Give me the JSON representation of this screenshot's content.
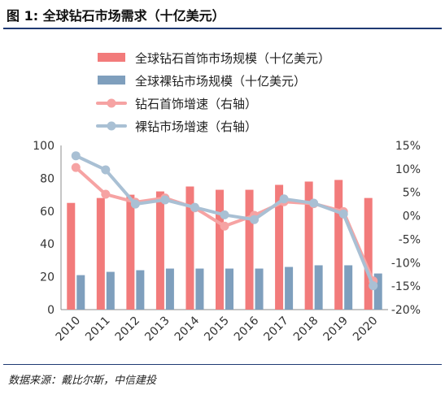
{
  "figure_title": "图 1: 全球钻石市场需求（十亿美元）",
  "source": "数据来源：戴比尔斯，中信建投",
  "chart_data": {
    "type": "bar",
    "categories": [
      "2010",
      "2011",
      "2012",
      "2013",
      "2014",
      "2015",
      "2016",
      "2017",
      "2018",
      "2019",
      "2020"
    ],
    "ylim": [
      0,
      100
    ],
    "yticks": [
      "0",
      "20",
      "40",
      "60",
      "80",
      "100"
    ],
    "y2lim": [
      -20,
      15
    ],
    "y2ticks": [
      "-20%",
      "-15%",
      "-10%",
      "-5%",
      "0%",
      "5%",
      "10%",
      "15%"
    ],
    "y2values": [
      -20,
      -15,
      -10,
      -5,
      0,
      5,
      10,
      15
    ],
    "grid": false,
    "legend_position": "top",
    "series": [
      {
        "name": "全球钻石首饰市场规模（十亿美元）",
        "kind": "bar",
        "axis": "left",
        "color": "#f27b7b",
        "values": [
          65,
          68,
          70,
          72,
          75,
          73,
          73,
          76,
          78,
          79,
          68
        ]
      },
      {
        "name": "全球裸钻市场规模（十亿美元）",
        "kind": "bar",
        "axis": "left",
        "color": "#7f9fbd",
        "values": [
          21,
          23,
          24,
          25,
          25,
          25,
          25,
          26,
          27,
          27,
          22
        ]
      },
      {
        "name": "钻石首饰增速（右轴）",
        "kind": "line",
        "axis": "right",
        "color": "#f6a3a3",
        "values": [
          10.3,
          4.6,
          2.9,
          3.8,
          1.7,
          -2.2,
          0.1,
          3.0,
          2.6,
          0.9,
          -13.9
        ]
      },
      {
        "name": "裸钻市场增速（右轴）",
        "kind": "line",
        "axis": "right",
        "color": "#a9c0d4",
        "values": [
          12.8,
          9.8,
          2.5,
          3.4,
          1.8,
          0.2,
          -0.8,
          3.6,
          2.7,
          0.4,
          -14.9
        ]
      }
    ]
  }
}
